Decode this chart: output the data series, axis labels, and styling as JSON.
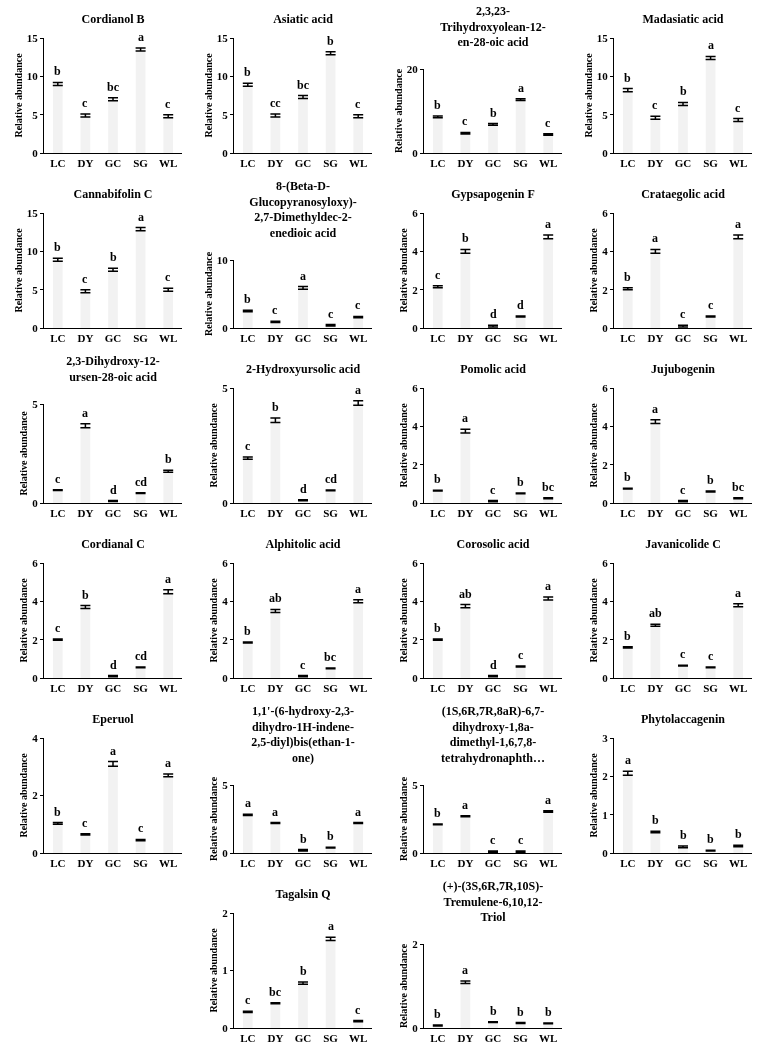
{
  "chart_data": [
    {
      "type": "bar",
      "title": "Cordianol B",
      "ylabel": "Relative abundance",
      "categories": [
        "LC",
        "DY",
        "GC",
        "SG",
        "WL"
      ],
      "values": [
        9.0,
        4.9,
        7.0,
        13.5,
        4.8
      ],
      "errors": [
        0.2,
        0.2,
        0.2,
        0.2,
        0.2
      ],
      "value_labels": [
        "b",
        "c",
        "bc",
        "a",
        "c"
      ],
      "color": "#f2f2f2",
      "ylim": [
        0,
        15
      ],
      "yticks": [
        0,
        5,
        10,
        15
      ]
    },
    {
      "type": "bar",
      "title": "Asiatic acid",
      "ylabel": "Relative abundance",
      "categories": [
        "LC",
        "DY",
        "GC",
        "SG",
        "WL"
      ],
      "values": [
        8.9,
        4.9,
        7.3,
        13.0,
        4.8
      ],
      "errors": [
        0.2,
        0.2,
        0.2,
        0.2,
        0.2
      ],
      "value_labels": [
        "b",
        "cc",
        "bc",
        "b",
        "c"
      ],
      "color": "#f2f2f2",
      "ylim": [
        0,
        15
      ],
      "yticks": [
        0,
        5,
        10,
        15
      ]
    },
    {
      "type": "bar",
      "title": "2,3,23-Trihydroxyolean-12-en-28-oic acid",
      "ylabel": "Relative abundance",
      "categories": [
        "LC",
        "DY",
        "GC",
        "SG",
        "WL"
      ],
      "values": [
        8.6,
        4.7,
        6.8,
        12.7,
        4.4
      ],
      "errors": [
        0.2,
        0.2,
        0.2,
        0.2,
        0.2
      ],
      "value_labels": [
        "b",
        "c",
        "b",
        "a",
        "c"
      ],
      "color": "#f2f2f2",
      "ylim": [
        0,
        20
      ],
      "yticks": [
        0,
        20
      ]
    },
    {
      "type": "bar",
      "title": "Madasiatic acid",
      "ylabel": "Relative abundance",
      "categories": [
        "LC",
        "DY",
        "GC",
        "SG",
        "WL"
      ],
      "values": [
        8.2,
        4.6,
        6.4,
        12.4,
        4.3
      ],
      "errors": [
        0.2,
        0.2,
        0.2,
        0.2,
        0.2
      ],
      "value_labels": [
        "b",
        "c",
        "b",
        "a",
        "c"
      ],
      "color": "#f2f2f2",
      "ylim": [
        0,
        15
      ],
      "yticks": [
        0,
        5,
        10,
        15
      ]
    },
    {
      "type": "bar",
      "title": "Cannabifolin C",
      "ylabel": "Relative abundance",
      "categories": [
        "LC",
        "DY",
        "GC",
        "SG",
        "WL"
      ],
      "values": [
        8.9,
        4.8,
        7.6,
        12.9,
        5.0
      ],
      "errors": [
        0.2,
        0.2,
        0.2,
        0.2,
        0.2
      ],
      "value_labels": [
        "b",
        "c",
        "b",
        "a",
        "c"
      ],
      "color": "#f2f2f2",
      "ylim": [
        0,
        15
      ],
      "yticks": [
        0,
        5,
        10,
        15
      ]
    },
    {
      "type": "bar",
      "title": "8-(Beta-D-Glucopyranosyloxy)-2,7-Dimethyldec-2-enedioic acid",
      "ylabel": "Relative abundance",
      "categories": [
        "LC",
        "DY",
        "GC",
        "SG",
        "WL"
      ],
      "values": [
        2.5,
        0.9,
        5.9,
        0.4,
        1.6
      ],
      "errors": [
        0.1,
        0.1,
        0.2,
        0.1,
        0.1
      ],
      "value_labels": [
        "b",
        "c",
        "a",
        "c",
        "c"
      ],
      "color": "#f2f2f2",
      "ylim": [
        0,
        10
      ],
      "yticks": [
        0,
        10
      ]
    },
    {
      "type": "bar",
      "title": "Gypsapogenin F",
      "ylabel": "Relative abundance",
      "categories": [
        "LC",
        "DY",
        "GC",
        "SG",
        "WL"
      ],
      "values": [
        2.15,
        4.0,
        0.1,
        0.6,
        4.75
      ],
      "errors": [
        0.05,
        0.1,
        0.05,
        0.02,
        0.1
      ],
      "value_labels": [
        "c",
        "b",
        "d",
        "d",
        "a"
      ],
      "color": "#f2f2f2",
      "ylim": [
        0,
        6
      ],
      "yticks": [
        0,
        2,
        4,
        6
      ]
    },
    {
      "type": "bar",
      "title": "Crataegolic acid",
      "ylabel": "Relative abundance",
      "categories": [
        "LC",
        "DY",
        "GC",
        "SG",
        "WL"
      ],
      "values": [
        2.05,
        4.0,
        0.1,
        0.6,
        4.75
      ],
      "errors": [
        0.05,
        0.1,
        0.05,
        0.02,
        0.1
      ],
      "value_labels": [
        "b",
        "a",
        "c",
        "c",
        "a"
      ],
      "color": "#f2f2f2",
      "ylim": [
        0,
        6
      ],
      "yticks": [
        0,
        2,
        4,
        6
      ]
    },
    {
      "type": "bar",
      "title": "2,3-Dihydroxy-12-ursen-28-oic acid",
      "ylabel": "Relative abundance",
      "categories": [
        "LC",
        "DY",
        "GC",
        "SG",
        "WL"
      ],
      "values": [
        0.65,
        3.9,
        0.1,
        0.5,
        1.6
      ],
      "errors": [
        0.02,
        0.1,
        0.02,
        0.02,
        0.05
      ],
      "value_labels": [
        "c",
        "a",
        "d",
        "cd",
        "b"
      ],
      "color": "#f2f2f2",
      "ylim": [
        0,
        5
      ],
      "yticks": [
        0,
        5
      ]
    },
    {
      "type": "bar",
      "title": "2-Hydroxyursolic acid",
      "ylabel": "Relative abundance",
      "categories": [
        "LC",
        "DY",
        "GC",
        "SG",
        "WL"
      ],
      "values": [
        1.95,
        3.6,
        0.12,
        0.55,
        4.35
      ],
      "errors": [
        0.05,
        0.1,
        0.02,
        0.02,
        0.1
      ],
      "value_labels": [
        "c",
        "b",
        "d",
        "cd",
        "a"
      ],
      "color": "#f2f2f2",
      "ylim": [
        0,
        5
      ],
      "yticks": [
        0,
        5
      ]
    },
    {
      "type": "bar",
      "title": "Pomolic acid",
      "ylabel": "Relative abundance",
      "categories": [
        "LC",
        "DY",
        "GC",
        "SG",
        "WL"
      ],
      "values": [
        0.65,
        3.75,
        0.1,
        0.5,
        0.25
      ],
      "errors": [
        0.02,
        0.1,
        0.03,
        0.02,
        0.03
      ],
      "value_labels": [
        "b",
        "a",
        "c",
        "b",
        "bc"
      ],
      "color": "#f2f2f2",
      "ylim": [
        0,
        6
      ],
      "yticks": [
        0,
        2,
        4,
        6
      ]
    },
    {
      "type": "bar",
      "title": "Jujubogenin",
      "ylabel": "Relative abundance",
      "categories": [
        "LC",
        "DY",
        "GC",
        "SG",
        "WL"
      ],
      "values": [
        0.75,
        4.25,
        0.1,
        0.6,
        0.25
      ],
      "errors": [
        0.02,
        0.1,
        0.03,
        0.02,
        0.03
      ],
      "value_labels": [
        "b",
        "a",
        "c",
        "b",
        "bc"
      ],
      "color": "#f2f2f2",
      "ylim": [
        0,
        6
      ],
      "yticks": [
        0,
        2,
        4,
        6
      ]
    },
    {
      "type": "bar",
      "title": "Cordianal C",
      "ylabel": "Relative abundance",
      "categories": [
        "LC",
        "DY",
        "GC",
        "SG",
        "WL"
      ],
      "values": [
        2.0,
        3.7,
        0.1,
        0.55,
        4.5
      ],
      "errors": [
        0.03,
        0.08,
        0.03,
        0.02,
        0.1
      ],
      "value_labels": [
        "c",
        "b",
        "d",
        "cd",
        "a"
      ],
      "color": "#f2f2f2",
      "ylim": [
        0,
        6
      ],
      "yticks": [
        0,
        2,
        4,
        6
      ]
    },
    {
      "type": "bar",
      "title": "Alphitolic acid",
      "ylabel": "Relative abundance",
      "categories": [
        "LC",
        "DY",
        "GC",
        "SG",
        "WL"
      ],
      "values": [
        1.85,
        3.5,
        0.1,
        0.5,
        4.0
      ],
      "errors": [
        0.03,
        0.08,
        0.03,
        0.02,
        0.08
      ],
      "value_labels": [
        "b",
        "ab",
        "c",
        "bc",
        "a"
      ],
      "color": "#f2f2f2",
      "ylim": [
        0,
        6
      ],
      "yticks": [
        0,
        2,
        4,
        6
      ]
    },
    {
      "type": "bar",
      "title": "Corosolic acid",
      "ylabel": "Relative abundance",
      "categories": [
        "LC",
        "DY",
        "GC",
        "SG",
        "WL"
      ],
      "values": [
        2.0,
        3.75,
        0.1,
        0.6,
        4.15
      ],
      "errors": [
        0.03,
        0.08,
        0.03,
        0.02,
        0.08
      ],
      "value_labels": [
        "b",
        "ab",
        "d",
        "c",
        "a"
      ],
      "color": "#f2f2f2",
      "ylim": [
        0,
        6
      ],
      "yticks": [
        0,
        2,
        4,
        6
      ]
    },
    {
      "type": "bar",
      "title": "Javanicolide C",
      "ylabel": "Relative abundance",
      "categories": [
        "LC",
        "DY",
        "GC",
        "SG",
        "WL"
      ],
      "values": [
        1.6,
        2.75,
        0.65,
        0.55,
        3.8
      ],
      "errors": [
        0.03,
        0.05,
        0.02,
        0.02,
        0.08
      ],
      "value_labels": [
        "b",
        "ab",
        "c",
        "c",
        "a"
      ],
      "color": "#f2f2f2",
      "ylim": [
        0,
        6
      ],
      "yticks": [
        0,
        2,
        4,
        6
      ]
    },
    {
      "type": "bar",
      "title": "Eperuol",
      "ylabel": "Relative abundance",
      "categories": [
        "LC",
        "DY",
        "GC",
        "SG",
        "WL"
      ],
      "values": [
        1.03,
        0.65,
        3.1,
        0.45,
        2.7
      ],
      "errors": [
        0.03,
        0.02,
        0.08,
        0.02,
        0.05
      ],
      "value_labels": [
        "b",
        "c",
        "a",
        "c",
        "a"
      ],
      "color": "#f2f2f2",
      "ylim": [
        0,
        4
      ],
      "yticks": [
        0,
        2,
        4
      ]
    },
    {
      "type": "bar",
      "title": "1,1'-(6-hydroxy-2,3-dihydro-1H-indene-2,5-diyl)bis(ethan-1-one)",
      "ylabel": "Relative abundance",
      "categories": [
        "LC",
        "DY",
        "GC",
        "SG",
        "WL"
      ],
      "values": [
        2.8,
        2.2,
        0.2,
        0.4,
        2.2
      ],
      "errors": [
        0.05,
        0.04,
        0.05,
        0.03,
        0.04
      ],
      "value_labels": [
        "a",
        "a",
        "b",
        "b",
        "a"
      ],
      "color": "#f2f2f2",
      "ylim": [
        0,
        5
      ],
      "yticks": [
        0,
        5
      ]
    },
    {
      "type": "bar",
      "title": "(1S,6R,7R,8aR)-6,7-dihydroxy-1,8a-dimethyl-1,6,7,8-tetrahydronaphth…",
      "ylabel": "Relative abundance",
      "categories": [
        "LC",
        "DY",
        "GC",
        "SG",
        "WL"
      ],
      "values": [
        2.1,
        2.7,
        0.1,
        0.1,
        3.05
      ],
      "errors": [
        0.03,
        0.04,
        0.05,
        0.05,
        0.05
      ],
      "value_labels": [
        "b",
        "a",
        "c",
        "c",
        "a"
      ],
      "color": "#f2f2f2",
      "ylim": [
        0,
        5
      ],
      "yticks": [
        0,
        5
      ]
    },
    {
      "type": "bar",
      "title": "Phytolaccagenin",
      "ylabel": "Relative abundance",
      "categories": [
        "LC",
        "DY",
        "GC",
        "SG",
        "WL"
      ],
      "values": [
        2.08,
        0.55,
        0.16,
        0.06,
        0.18
      ],
      "errors": [
        0.05,
        0.02,
        0.02,
        0.01,
        0.02
      ],
      "value_labels": [
        "a",
        "b",
        "b",
        "b",
        "b"
      ],
      "color": "#f2f2f2",
      "ylim": [
        0,
        3
      ],
      "yticks": [
        0,
        1,
        2,
        3
      ]
    },
    {
      "type": "bar",
      "title": "Tagalsin Q",
      "ylabel": "Relative abundance",
      "categories": [
        "LC",
        "DY",
        "GC",
        "SG",
        "WL"
      ],
      "values": [
        0.28,
        0.43,
        0.78,
        1.55,
        0.12
      ],
      "errors": [
        0.01,
        0.01,
        0.02,
        0.03,
        0.01
      ],
      "value_labels": [
        "c",
        "bc",
        "b",
        "a",
        "c"
      ],
      "color": "#f2f2f2",
      "ylim": [
        0,
        2
      ],
      "yticks": [
        0,
        1,
        2
      ]
    },
    {
      "type": "bar",
      "title": "(+)-(3S,6R,7R,10S)-Tremulene-6,10,12-Triol",
      "ylabel": "Relative abundance",
      "categories": [
        "LC",
        "DY",
        "GC",
        "SG",
        "WL"
      ],
      "values": [
        0.06,
        1.09,
        0.14,
        0.12,
        0.11
      ],
      "errors": [
        0.01,
        0.03,
        0.01,
        0.01,
        0.01
      ],
      "value_labels": [
        "b",
        "a",
        "b",
        "b",
        "b"
      ],
      "color": "#f2f2f2",
      "ylim": [
        0,
        2
      ],
      "yticks": [
        0,
        2
      ]
    }
  ]
}
